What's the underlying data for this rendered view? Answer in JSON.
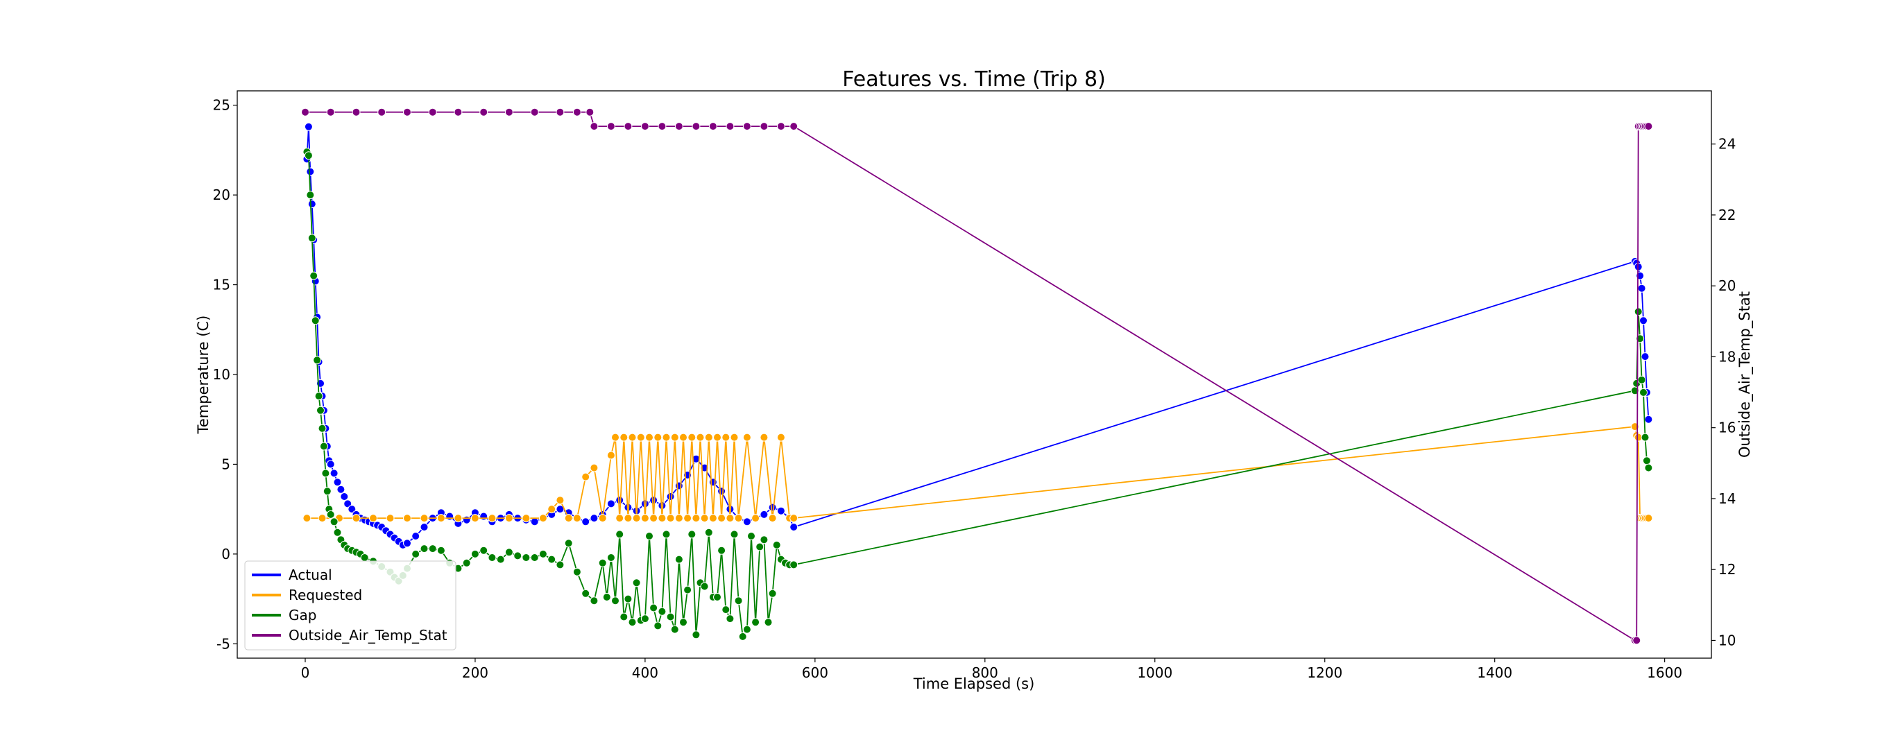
{
  "chart_data": {
    "type": "line",
    "title": "Features vs. Time (Trip 8)",
    "xlabel": "Time Elapsed (s)",
    "ylabel": "Temperature (C)",
    "y2label": "Outside_Air_Temp_Stat",
    "xlim": [
      -80,
      1655
    ],
    "ylim": [
      -5.8,
      25.8
    ],
    "y2lim": [
      9.5,
      25.5
    ],
    "x_ticks": [
      0,
      200,
      400,
      600,
      800,
      1000,
      1200,
      1400,
      1600
    ],
    "y_ticks": [
      -5,
      0,
      5,
      10,
      15,
      20,
      25
    ],
    "y2_ticks": [
      10,
      12,
      14,
      16,
      18,
      20,
      22,
      24
    ],
    "grid": false,
    "legend_position": "lower-left",
    "markers": true,
    "series": [
      {
        "name": "Actual",
        "axis": "left",
        "color": "#0000ff",
        "x": [
          2,
          4,
          6,
          8,
          10,
          12,
          14,
          16,
          18,
          20,
          22,
          24,
          26,
          28,
          30,
          34,
          38,
          42,
          46,
          50,
          55,
          60,
          65,
          70,
          75,
          80,
          85,
          90,
          95,
          100,
          105,
          110,
          115,
          120,
          130,
          140,
          150,
          160,
          170,
          180,
          190,
          200,
          210,
          220,
          230,
          240,
          250,
          260,
          270,
          280,
          290,
          300,
          310,
          320,
          330,
          340,
          350,
          360,
          370,
          380,
          390,
          400,
          410,
          420,
          430,
          440,
          450,
          460,
          470,
          480,
          490,
          500,
          510,
          520,
          530,
          540,
          550,
          560,
          570,
          575,
          1565,
          1567,
          1569,
          1571,
          1573,
          1575,
          1577,
          1579,
          1581
        ],
        "y": [
          22,
          23.8,
          21.3,
          19.5,
          17.5,
          15.2,
          13.2,
          10.7,
          9.5,
          8.8,
          8,
          7,
          6,
          5.2,
          5,
          4.5,
          4,
          3.6,
          3.2,
          2.8,
          2.5,
          2.2,
          2,
          1.9,
          1.8,
          1.7,
          1.6,
          1.5,
          1.3,
          1.1,
          0.9,
          0.7,
          0.5,
          0.6,
          1,
          1.5,
          2,
          2.3,
          2.1,
          1.7,
          1.9,
          2.3,
          2.1,
          1.8,
          2,
          2.2,
          2,
          1.9,
          1.8,
          2,
          2.2,
          2.5,
          2.3,
          2,
          1.8,
          2,
          2.2,
          2.8,
          3,
          2.6,
          2.4,
          2.8,
          3,
          2.7,
          3.2,
          3.8,
          4.4,
          5.3,
          4.8,
          4,
          3.5,
          2.5,
          2,
          1.8,
          2,
          2.2,
          2.6,
          2.4,
          2,
          1.5,
          16.3,
          16.2,
          16,
          15.5,
          14.8,
          13,
          11,
          9,
          7.5
        ]
      },
      {
        "name": "Requested",
        "axis": "left",
        "color": "#ffa500",
        "x": [
          2,
          20,
          40,
          60,
          80,
          100,
          120,
          140,
          160,
          180,
          200,
          220,
          240,
          260,
          280,
          290,
          300,
          310,
          320,
          330,
          340,
          350,
          360,
          365,
          370,
          375,
          380,
          385,
          390,
          395,
          400,
          405,
          410,
          415,
          420,
          425,
          430,
          435,
          440,
          445,
          450,
          455,
          460,
          465,
          470,
          475,
          480,
          485,
          490,
          495,
          500,
          505,
          510,
          520,
          530,
          540,
          550,
          560,
          570,
          575,
          1565,
          1567,
          1569,
          1571,
          1573,
          1575,
          1577,
          1579,
          1581
        ],
        "y": [
          2,
          2,
          2,
          2,
          2,
          2,
          2,
          2,
          2,
          2,
          2,
          2,
          2,
          2,
          2,
          2.5,
          3,
          2,
          2,
          4.3,
          4.8,
          2,
          5.5,
          6.5,
          2,
          6.5,
          2,
          6.5,
          2,
          6.5,
          2,
          6.5,
          2,
          6.5,
          2,
          6.5,
          2,
          6.5,
          2,
          6.5,
          2,
          6.5,
          2,
          6.5,
          2,
          6.5,
          2,
          6.5,
          2,
          6.5,
          2,
          6.5,
          2,
          6.5,
          2,
          6.5,
          2,
          6.5,
          2,
          2,
          7.1,
          6.6,
          6.5,
          2,
          2,
          2,
          2,
          2,
          2
        ]
      },
      {
        "name": "Gap",
        "axis": "left",
        "color": "#008000",
        "x": [
          2,
          4,
          6,
          8,
          10,
          12,
          14,
          16,
          18,
          20,
          22,
          24,
          26,
          28,
          30,
          34,
          38,
          42,
          46,
          50,
          55,
          60,
          65,
          70,
          80,
          90,
          100,
          105,
          110,
          115,
          120,
          130,
          140,
          150,
          160,
          170,
          180,
          190,
          200,
          210,
          220,
          230,
          240,
          250,
          260,
          270,
          280,
          290,
          300,
          310,
          320,
          330,
          340,
          350,
          355,
          360,
          365,
          370,
          375,
          380,
          385,
          390,
          395,
          400,
          405,
          410,
          415,
          420,
          425,
          430,
          435,
          440,
          445,
          450,
          455,
          460,
          465,
          470,
          475,
          480,
          485,
          490,
          495,
          500,
          505,
          510,
          515,
          520,
          525,
          530,
          535,
          540,
          545,
          550,
          555,
          560,
          565,
          570,
          575,
          1565,
          1567,
          1569,
          1571,
          1573,
          1575,
          1577,
          1579,
          1581
        ],
        "y": [
          22.4,
          22.2,
          20,
          17.6,
          15.5,
          13,
          10.8,
          8.8,
          8,
          7,
          6,
          4.5,
          3.5,
          2.5,
          2.2,
          1.8,
          1.2,
          0.8,
          0.5,
          0.3,
          0.2,
          0.1,
          0,
          -0.2,
          -0.4,
          -0.7,
          -1,
          -1.3,
          -1.5,
          -1.2,
          -0.8,
          0,
          0.3,
          0.3,
          0.2,
          -0.5,
          -0.8,
          -0.5,
          0,
          0.2,
          -0.2,
          -0.3,
          0.1,
          -0.1,
          -0.2,
          -0.2,
          0,
          -0.3,
          -0.6,
          0.6,
          -1,
          -2.2,
          -2.6,
          -0.5,
          -2.4,
          -0.2,
          -2.6,
          1.1,
          -3.5,
          -2.5,
          -3.8,
          -1.6,
          -3.7,
          -3.6,
          1,
          -3,
          -4,
          -3.2,
          1.1,
          -3.5,
          -4.2,
          -0.3,
          -3.8,
          -2,
          1.1,
          -4.5,
          -1.6,
          -1.8,
          1.2,
          -2.4,
          -2.4,
          0.2,
          -3.1,
          -3.6,
          1.1,
          -2.6,
          -4.6,
          -4.2,
          1,
          -3.8,
          0.4,
          0.8,
          -3.8,
          -2.2,
          0.5,
          -0.3,
          -0.5,
          -0.6,
          -0.6,
          9.1,
          9.5,
          13.5,
          12,
          9.7,
          9,
          6.5,
          5.2,
          4.8
        ]
      },
      {
        "name": "Outside_Air_Temp_Stat",
        "axis": "right",
        "color": "#800080",
        "x": [
          0,
          30,
          60,
          90,
          120,
          150,
          180,
          210,
          240,
          270,
          300,
          320,
          335,
          340,
          360,
          380,
          400,
          420,
          440,
          460,
          480,
          500,
          520,
          540,
          560,
          575,
          1565,
          1567,
          1569,
          1571,
          1573,
          1575,
          1577,
          1579,
          1581
        ],
        "y": [
          24.9,
          24.9,
          24.9,
          24.9,
          24.9,
          24.9,
          24.9,
          24.9,
          24.9,
          24.9,
          24.9,
          24.9,
          24.9,
          24.5,
          24.5,
          24.5,
          24.5,
          24.5,
          24.5,
          24.5,
          24.5,
          24.5,
          24.5,
          24.5,
          24.5,
          24.5,
          10,
          10,
          24.5,
          24.5,
          24.5,
          24.5,
          24.5,
          24.5,
          24.5
        ]
      }
    ]
  }
}
